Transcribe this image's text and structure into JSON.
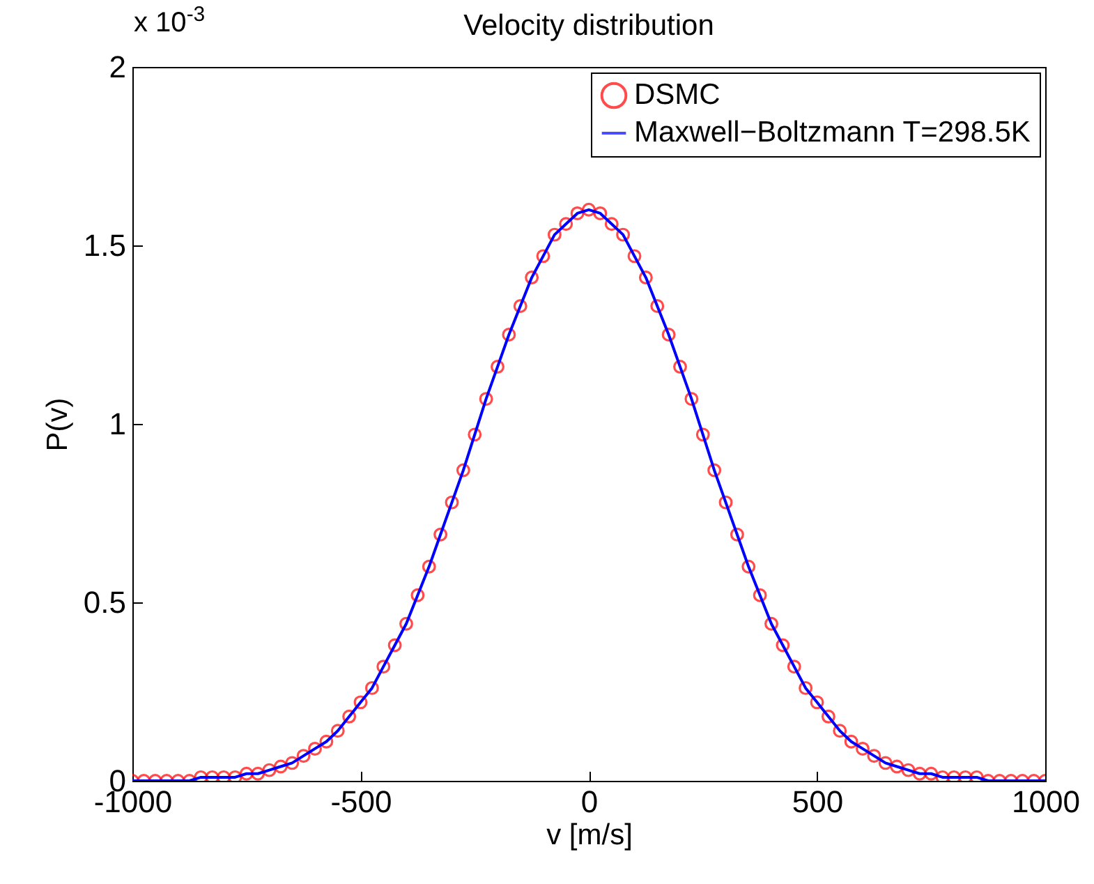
{
  "chart_data": {
    "type": "line",
    "title": "Velocity distribution",
    "xlabel": "v [m/s]",
    "ylabel": "P(v)",
    "annotations": [
      "x 10$^{-3}$"
    ],
    "x": [
      -1000,
      -975,
      -950,
      -925,
      -900,
      -875,
      -850,
      -825,
      -800,
      -775,
      -750,
      -725,
      -700,
      -675,
      -650,
      -625,
      -600,
      -575,
      -550,
      -525,
      -500,
      -475,
      -450,
      -425,
      -400,
      -375,
      -350,
      -325,
      -300,
      -275,
      -250,
      -225,
      -200,
      -175,
      -150,
      -125,
      -100,
      -75,
      -50,
      -25,
      0,
      25,
      50,
      75,
      100,
      125,
      150,
      175,
      200,
      225,
      250,
      275,
      300,
      325,
      350,
      375,
      400,
      425,
      450,
      475,
      500,
      525,
      550,
      575,
      600,
      625,
      650,
      675,
      700,
      725,
      750,
      775,
      800,
      825,
      850,
      875,
      900,
      925,
      950,
      975,
      1000
    ],
    "series": [
      {
        "name": "DSMC",
        "type": "scatter",
        "color": "#ff0000",
        "marker": "circle",
        "values": [
          0,
          0,
          0,
          0,
          0,
          0,
          0.01,
          0.01,
          0.01,
          0.01,
          0.02,
          0.02,
          0.03,
          0.04,
          0.05,
          0.07,
          0.09,
          0.11,
          0.14,
          0.18,
          0.22,
          0.26,
          0.32,
          0.38,
          0.44,
          0.52,
          0.6,
          0.69,
          0.78,
          0.87,
          0.97,
          1.07,
          1.16,
          1.25,
          1.33,
          1.41,
          1.47,
          1.53,
          1.56,
          1.59,
          1.6,
          1.59,
          1.56,
          1.53,
          1.47,
          1.41,
          1.33,
          1.25,
          1.16,
          1.07,
          0.97,
          0.87,
          0.78,
          0.69,
          0.6,
          0.52,
          0.44,
          0.38,
          0.32,
          0.26,
          0.22,
          0.18,
          0.14,
          0.11,
          0.09,
          0.07,
          0.05,
          0.04,
          0.03,
          0.02,
          0.02,
          0.01,
          0.01,
          0.01,
          0.01,
          0,
          0,
          0,
          0,
          0,
          0
        ]
      },
      {
        "name": "Maxwell−Boltzmann T=298.5K",
        "type": "line",
        "color": "#0000ff",
        "line_style": "solid",
        "values": [
          0,
          0,
          0,
          0,
          0,
          0,
          0.01,
          0.01,
          0.01,
          0.01,
          0.02,
          0.02,
          0.03,
          0.04,
          0.05,
          0.07,
          0.09,
          0.11,
          0.14,
          0.18,
          0.22,
          0.26,
          0.32,
          0.38,
          0.44,
          0.52,
          0.6,
          0.69,
          0.78,
          0.87,
          0.97,
          1.07,
          1.16,
          1.25,
          1.33,
          1.41,
          1.47,
          1.53,
          1.56,
          1.59,
          1.6,
          1.59,
          1.56,
          1.53,
          1.47,
          1.41,
          1.33,
          1.25,
          1.16,
          1.07,
          0.97,
          0.87,
          0.78,
          0.69,
          0.6,
          0.52,
          0.44,
          0.38,
          0.32,
          0.26,
          0.22,
          0.18,
          0.14,
          0.11,
          0.09,
          0.07,
          0.05,
          0.04,
          0.03,
          0.02,
          0.02,
          0.01,
          0.01,
          0.01,
          0.01,
          0,
          0,
          0,
          0,
          0,
          0
        ]
      }
    ],
    "xlim": [
      -1000,
      1000
    ],
    "xticks": [
      -1000,
      -500,
      0,
      500,
      1000
    ],
    "ylim": [
      0,
      2
    ],
    "yticks": [
      0,
      0.5,
      1,
      1.5,
      2
    ],
    "grid": false,
    "legend": "top right"
  }
}
